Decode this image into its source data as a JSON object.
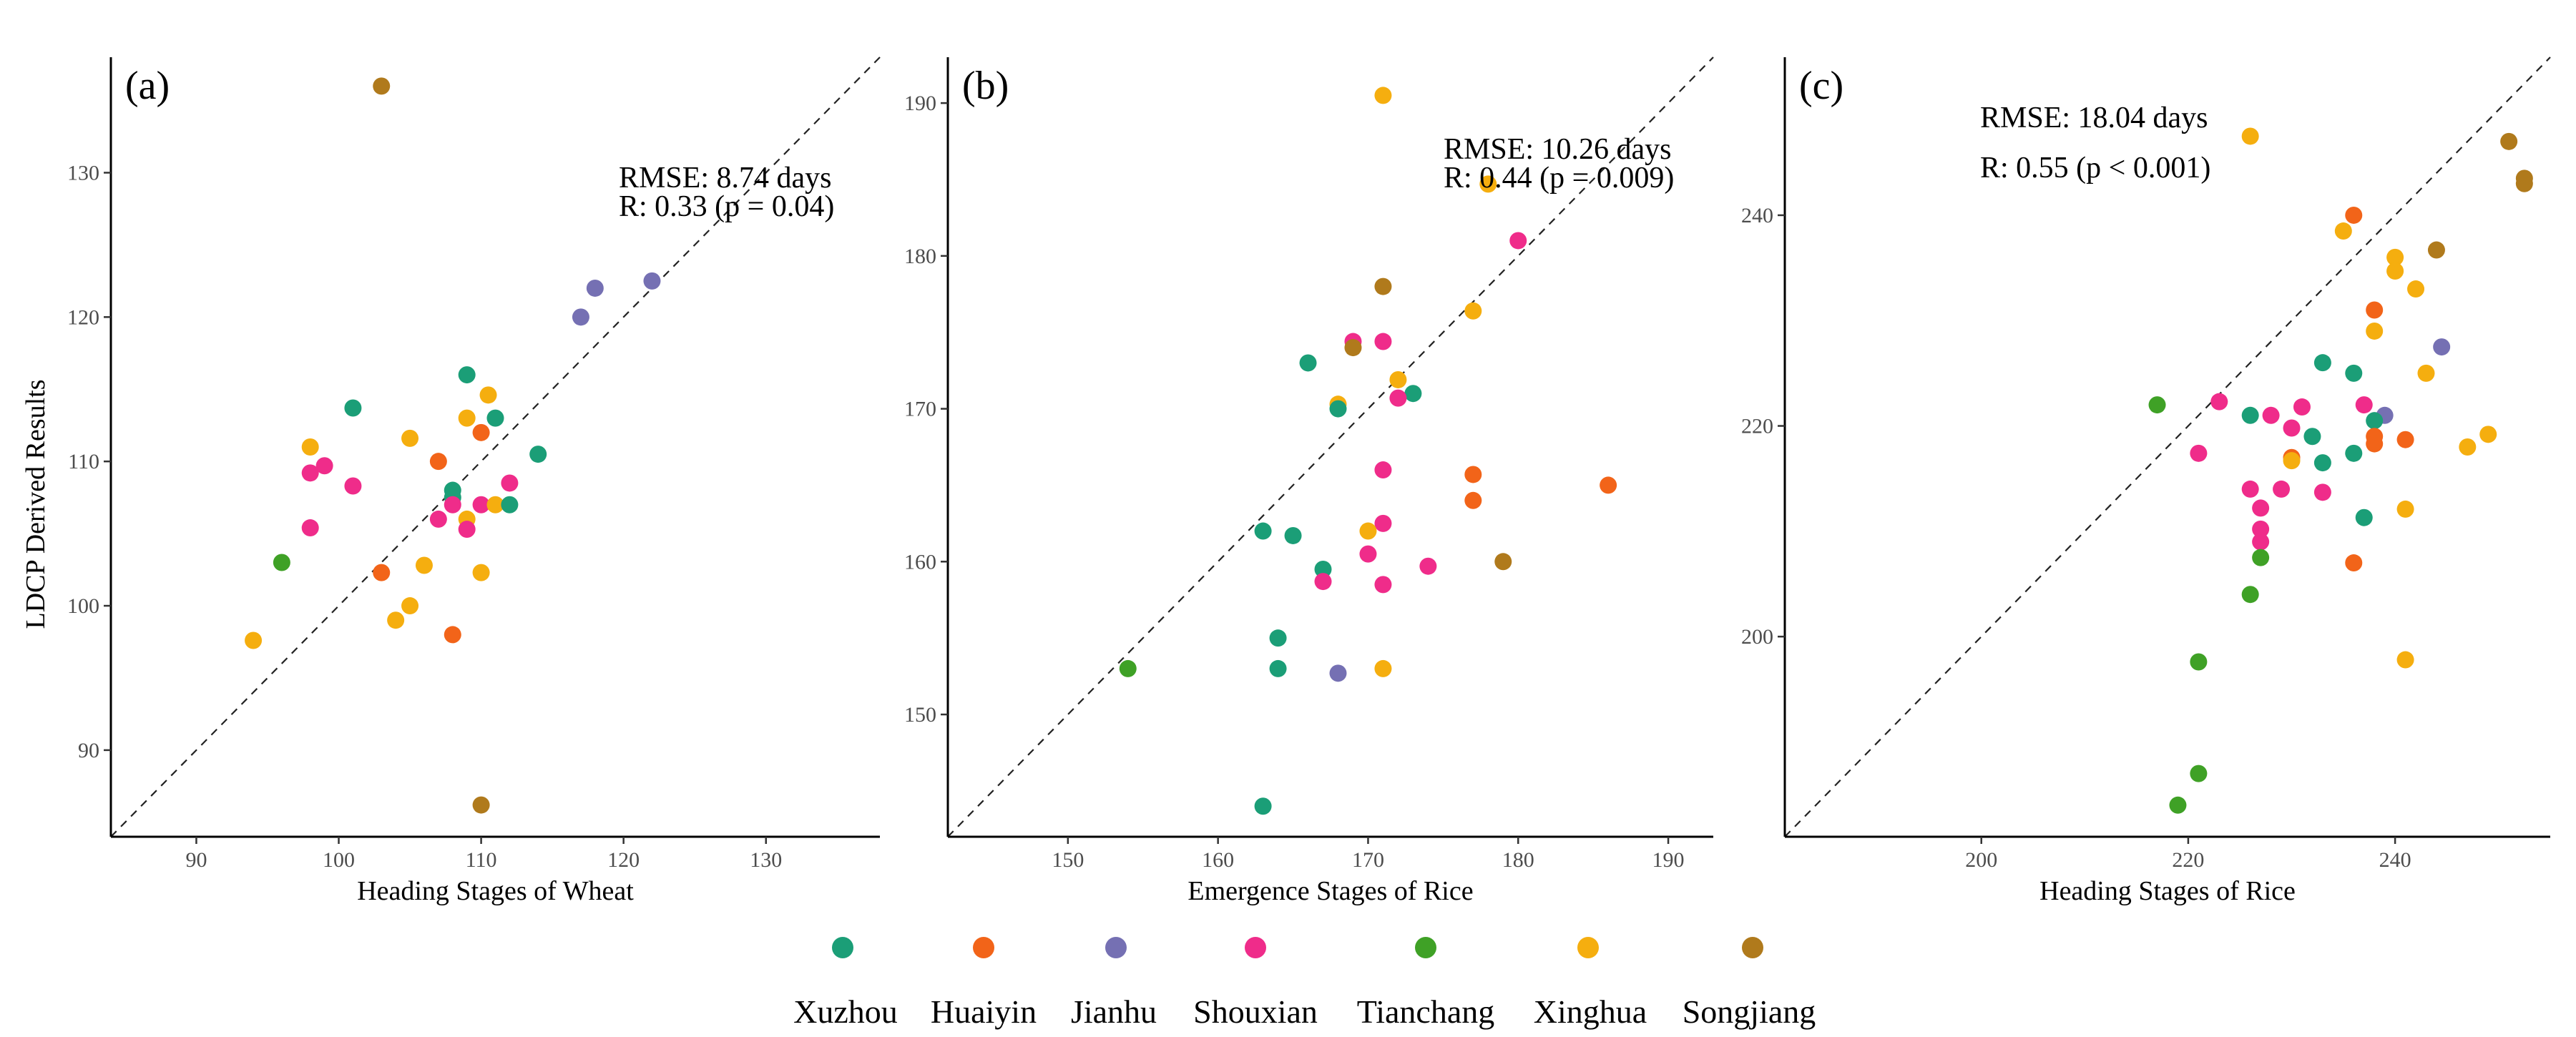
{
  "legend": [
    {
      "name": "Xuzhou",
      "color": "#1b9e77"
    },
    {
      "name": "Huaiyin",
      "color": "#f26419"
    },
    {
      "name": "Jianhu",
      "color": "#7570b3"
    },
    {
      "name": "Shouxian",
      "color": "#ef2c8a"
    },
    {
      "name": "Tianchang",
      "color": "#3fa126"
    },
    {
      "name": "Xinghua",
      "color": "#f5ae0f"
    },
    {
      "name": "Songjiang",
      "color": "#b07a1c"
    }
  ],
  "shared_ylabel": "LDCP Derived Results",
  "chart_data": [
    {
      "type": "scatter",
      "panel": "(a)",
      "xlabel": "Heading Stages of Wheat",
      "ylabel": "LDCP Derived Results",
      "xlim": [
        84,
        138
      ],
      "ylim": [
        84,
        138
      ],
      "xticks": [
        90,
        100,
        110,
        120,
        130
      ],
      "yticks": [
        90,
        100,
        110,
        120,
        130
      ],
      "rmse_text": "RMSE: 8.74 days",
      "r_text": "R: 0.33 (p = 0.04)",
      "reference_line": "1:1 dashed",
      "grid": false,
      "points": [
        {
          "series": "Songjiang",
          "x": 103,
          "y": 136
        },
        {
          "series": "Jianhu",
          "x": 122,
          "y": 122.5
        },
        {
          "series": "Jianhu",
          "x": 118,
          "y": 122
        },
        {
          "series": "Jianhu",
          "x": 117,
          "y": 120
        },
        {
          "series": "Xuzhou",
          "x": 101,
          "y": 113.7
        },
        {
          "series": "Xuzhou",
          "x": 109,
          "y": 116
        },
        {
          "series": "Xinghua",
          "x": 110.5,
          "y": 114.6
        },
        {
          "series": "Xuzhou",
          "x": 111,
          "y": 113
        },
        {
          "series": "Xinghua",
          "x": 109,
          "y": 113
        },
        {
          "series": "Huaiyin",
          "x": 110,
          "y": 112
        },
        {
          "series": "Xinghua",
          "x": 105,
          "y": 111.6
        },
        {
          "series": "Xinghua",
          "x": 98,
          "y": 111
        },
        {
          "series": "Xuzhou",
          "x": 114,
          "y": 110.5
        },
        {
          "series": "Huaiyin",
          "x": 107,
          "y": 110
        },
        {
          "series": "Shouxian",
          "x": 99,
          "y": 109.7
        },
        {
          "series": "Shouxian",
          "x": 98,
          "y": 109.2
        },
        {
          "series": "Shouxian",
          "x": 112,
          "y": 108.5
        },
        {
          "series": "Shouxian",
          "x": 101,
          "y": 108.3
        },
        {
          "series": "Xuzhou",
          "x": 108,
          "y": 108
        },
        {
          "series": "Xuzhou",
          "x": 108,
          "y": 107.5
        },
        {
          "series": "Shouxian",
          "x": 108,
          "y": 107
        },
        {
          "series": "Shouxian",
          "x": 110,
          "y": 107
        },
        {
          "series": "Xinghua",
          "x": 111,
          "y": 107
        },
        {
          "series": "Xuzhou",
          "x": 112,
          "y": 107
        },
        {
          "series": "Shouxian",
          "x": 107,
          "y": 106
        },
        {
          "series": "Xinghua",
          "x": 109,
          "y": 106
        },
        {
          "series": "Shouxian",
          "x": 98,
          "y": 105.4
        },
        {
          "series": "Shouxian",
          "x": 109,
          "y": 105.3
        },
        {
          "series": "Tianchang",
          "x": 96,
          "y": 103
        },
        {
          "series": "Xinghua",
          "x": 106,
          "y": 102.8
        },
        {
          "series": "Huaiyin",
          "x": 103,
          "y": 102.3
        },
        {
          "series": "Xinghua",
          "x": 110,
          "y": 102.3
        },
        {
          "series": "Xinghua",
          "x": 105,
          "y": 100
        },
        {
          "series": "Xinghua",
          "x": 104,
          "y": 99
        },
        {
          "series": "Huaiyin",
          "x": 108,
          "y": 98
        },
        {
          "series": "Xinghua",
          "x": 94,
          "y": 97.6
        },
        {
          "series": "Songjiang",
          "x": 110,
          "y": 86.2
        }
      ]
    },
    {
      "type": "scatter",
      "panel": "(b)",
      "xlabel": "Emergence Stages of Rice",
      "xlim": [
        142,
        193
      ],
      "ylim": [
        142,
        193
      ],
      "xticks": [
        150,
        160,
        170,
        180,
        190
      ],
      "yticks": [
        150,
        160,
        170,
        180,
        190
      ],
      "rmse_text": "RMSE: 10.26 days",
      "r_text": "R: 0.44 (p = 0.009)",
      "reference_line": "1:1 dashed",
      "grid": false,
      "points": [
        {
          "series": "Xinghua",
          "x": 171,
          "y": 190.5
        },
        {
          "series": "Xinghua",
          "x": 178,
          "y": 184.7
        },
        {
          "series": "Shouxian",
          "x": 180,
          "y": 181
        },
        {
          "series": "Songjiang",
          "x": 171,
          "y": 178
        },
        {
          "series": "Xinghua",
          "x": 177,
          "y": 176.4
        },
        {
          "series": "Shouxian",
          "x": 169,
          "y": 174.4
        },
        {
          "series": "Shouxian",
          "x": 171,
          "y": 174.4
        },
        {
          "series": "Songjiang",
          "x": 169,
          "y": 174
        },
        {
          "series": "Xuzhou",
          "x": 166,
          "y": 173
        },
        {
          "series": "Xinghua",
          "x": 172,
          "y": 171.9
        },
        {
          "series": "Xuzhou",
          "x": 173,
          "y": 171
        },
        {
          "series": "Shouxian",
          "x": 172,
          "y": 170.7
        },
        {
          "series": "Xinghua",
          "x": 168,
          "y": 170.3
        },
        {
          "series": "Xuzhou",
          "x": 168,
          "y": 170
        },
        {
          "series": "Shouxian",
          "x": 171,
          "y": 166
        },
        {
          "series": "Huaiyin",
          "x": 177,
          "y": 165.7
        },
        {
          "series": "Huaiyin",
          "x": 186,
          "y": 165
        },
        {
          "series": "Huaiyin",
          "x": 177,
          "y": 164
        },
        {
          "series": "Shouxian",
          "x": 171,
          "y": 162.5
        },
        {
          "series": "Xuzhou",
          "x": 163,
          "y": 162
        },
        {
          "series": "Xinghua",
          "x": 170,
          "y": 162
        },
        {
          "series": "Xuzhou",
          "x": 165,
          "y": 161.7
        },
        {
          "series": "Shouxian",
          "x": 170,
          "y": 160.5
        },
        {
          "series": "Songjiang",
          "x": 179,
          "y": 160
        },
        {
          "series": "Shouxian",
          "x": 174,
          "y": 159.7
        },
        {
          "series": "Xuzhou",
          "x": 167,
          "y": 159.5
        },
        {
          "series": "Shouxian",
          "x": 167,
          "y": 158.7
        },
        {
          "series": "Shouxian",
          "x": 171,
          "y": 158.5
        },
        {
          "series": "Xuzhou",
          "x": 164,
          "y": 155
        },
        {
          "series": "Tianchang",
          "x": 154,
          "y": 153
        },
        {
          "series": "Xuzhou",
          "x": 164,
          "y": 153
        },
        {
          "series": "Xinghua",
          "x": 171,
          "y": 153
        },
        {
          "series": "Jianhu",
          "x": 168,
          "y": 152.7
        },
        {
          "series": "Xuzhou",
          "x": 163,
          "y": 144
        }
      ]
    },
    {
      "type": "scatter",
      "panel": "(c)",
      "xlabel": "Heading Stages of Rice",
      "xlim": [
        181,
        255
      ],
      "ylim": [
        181,
        255
      ],
      "xticks": [
        200,
        220,
        240
      ],
      "yticks": [
        200,
        220,
        240
      ],
      "rmse_text": "RMSE: 18.04 days",
      "r_text": "R: 0.55 (p < 0.001)",
      "reference_line": "1:1 dashed",
      "grid": false,
      "points": [
        {
          "series": "Xinghua",
          "x": 226,
          "y": 247.5
        },
        {
          "series": "Songjiang",
          "x": 251,
          "y": 247
        },
        {
          "series": "Songjiang",
          "x": 252.5,
          "y": 243.5
        },
        {
          "series": "Songjiang",
          "x": 252.5,
          "y": 243
        },
        {
          "series": "Huaiyin",
          "x": 236,
          "y": 240
        },
        {
          "series": "Xinghua",
          "x": 235,
          "y": 238.5
        },
        {
          "series": "Songjiang",
          "x": 244,
          "y": 236.7
        },
        {
          "series": "Xinghua",
          "x": 240,
          "y": 236
        },
        {
          "series": "Xinghua",
          "x": 240,
          "y": 234.7
        },
        {
          "series": "Xinghua",
          "x": 242,
          "y": 233
        },
        {
          "series": "Huaiyin",
          "x": 238,
          "y": 231
        },
        {
          "series": "Xinghua",
          "x": 238,
          "y": 229
        },
        {
          "series": "Jianhu",
          "x": 244.5,
          "y": 227.5
        },
        {
          "series": "Xuzhou",
          "x": 233,
          "y": 226
        },
        {
          "series": "Xuzhou",
          "x": 236,
          "y": 225
        },
        {
          "series": "Xinghua",
          "x": 243,
          "y": 225
        },
        {
          "series": "Shouxian",
          "x": 223,
          "y": 222.3
        },
        {
          "series": "Tianchang",
          "x": 217,
          "y": 222
        },
        {
          "series": "Shouxian",
          "x": 237,
          "y": 222
        },
        {
          "series": "Shouxian",
          "x": 231,
          "y": 221.8
        },
        {
          "series": "Xuzhou",
          "x": 226,
          "y": 221
        },
        {
          "series": "Shouxian",
          "x": 228,
          "y": 221
        },
        {
          "series": "Jianhu",
          "x": 239,
          "y": 221
        },
        {
          "series": "Xuzhou",
          "x": 238,
          "y": 220.5
        },
        {
          "series": "Shouxian",
          "x": 230,
          "y": 219.8
        },
        {
          "series": "Xuzhou",
          "x": 232,
          "y": 219
        },
        {
          "series": "Huaiyin",
          "x": 238,
          "y": 219
        },
        {
          "series": "Huaiyin",
          "x": 241,
          "y": 218.7
        },
        {
          "series": "Huaiyin",
          "x": 238,
          "y": 218.3
        },
        {
          "series": "Xinghua",
          "x": 249,
          "y": 219.2
        },
        {
          "series": "Xinghua",
          "x": 247,
          "y": 218
        },
        {
          "series": "Shouxian",
          "x": 221,
          "y": 217.4
        },
        {
          "series": "Xuzhou",
          "x": 236,
          "y": 217.4
        },
        {
          "series": "Huaiyin",
          "x": 230,
          "y": 217
        },
        {
          "series": "Xinghua",
          "x": 230,
          "y": 216.7
        },
        {
          "series": "Xuzhou",
          "x": 233,
          "y": 216.5
        },
        {
          "series": "Shouxian",
          "x": 226,
          "y": 214
        },
        {
          "series": "Shouxian",
          "x": 229,
          "y": 214
        },
        {
          "series": "Shouxian",
          "x": 233,
          "y": 213.7
        },
        {
          "series": "Shouxian",
          "x": 227,
          "y": 212.2
        },
        {
          "series": "Xinghua",
          "x": 241,
          "y": 212.1
        },
        {
          "series": "Xuzhou",
          "x": 237,
          "y": 211.3
        },
        {
          "series": "Shouxian",
          "x": 227,
          "y": 210.2
        },
        {
          "series": "Shouxian",
          "x": 227,
          "y": 209
        },
        {
          "series": "Tianchang",
          "x": 227,
          "y": 207.5
        },
        {
          "series": "Huaiyin",
          "x": 236,
          "y": 207
        },
        {
          "series": "Tianchang",
          "x": 226,
          "y": 204
        },
        {
          "series": "Xinghua",
          "x": 241,
          "y": 197.8
        },
        {
          "series": "Tianchang",
          "x": 221,
          "y": 197.6
        },
        {
          "series": "Tianchang",
          "x": 221,
          "y": 187
        },
        {
          "series": "Tianchang",
          "x": 219,
          "y": 184
        }
      ]
    }
  ]
}
